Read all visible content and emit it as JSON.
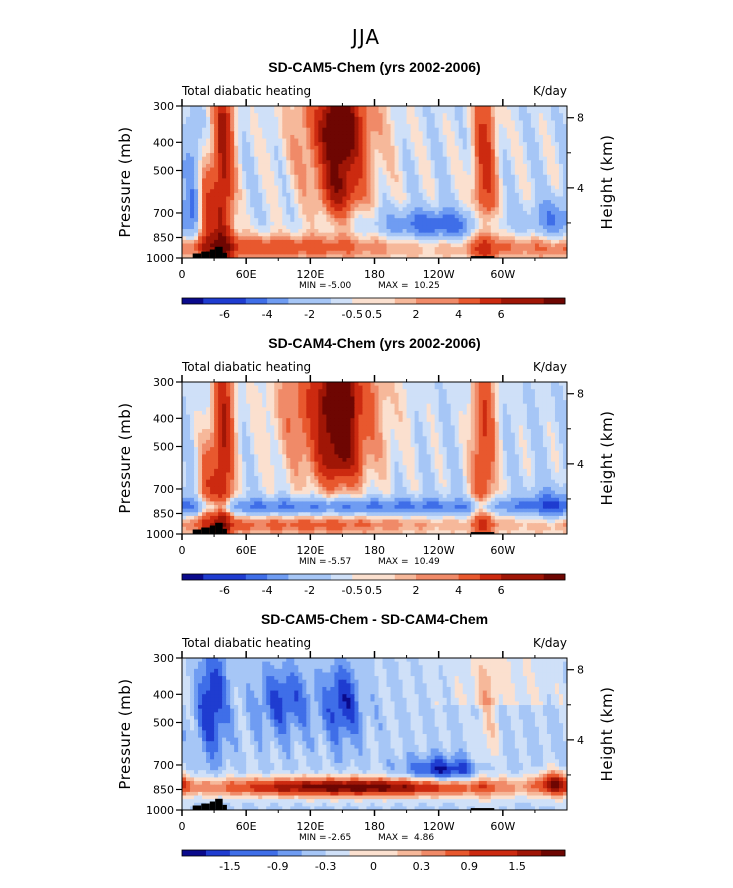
{
  "season": "JJA",
  "colors": {
    "scale": [
      "#0a0a8c",
      "#1f3cd0",
      "#3f6ee8",
      "#6f9cf2",
      "#a6c6f6",
      "#cfe0f8",
      "#fbe0cf",
      "#f6b89a",
      "#f08a68",
      "#e8582e",
      "#cc2a10",
      "#a01606",
      "#6e0602"
    ],
    "terrain": "#000000"
  },
  "common": {
    "quantity_label": "Total diabatic heating",
    "units": "K/day",
    "left_axis_label": "Pressure (mb)",
    "right_axis_label": "Height (km)"
  },
  "chart_data": [
    {
      "type": "heatmap",
      "title": "SD-CAM5-Chem (yrs 2002-2006)",
      "x_ticks": [
        "0",
        "60E",
        "120E",
        "180",
        "120W",
        "60W"
      ],
      "x_tick_values": [
        0,
        60,
        120,
        180,
        240,
        300
      ],
      "xlim": [
        0,
        360
      ],
      "y_ticks": [
        "300",
        "400",
        "500",
        "700",
        "850",
        "1000"
      ],
      "y_tick_values": [
        300,
        400,
        500,
        700,
        850,
        1000
      ],
      "ylim": [
        1000,
        300
      ],
      "y2_ticks": [
        "8",
        "4"
      ],
      "y2_tick_values": [
        8,
        4
      ],
      "min_label": "MIN =",
      "min_value": "-5.00",
      "max_label": "MAX =",
      "max_value": "10.25",
      "colorbar_labels": [
        "-6",
        "-4",
        "-2",
        "-0.5",
        "0.5",
        "2",
        "4",
        "6"
      ],
      "colorbar_levels": [
        -7,
        -6,
        -5,
        -4,
        -3,
        -2,
        -1,
        -0.5,
        0,
        0.5,
        1,
        2,
        3,
        4,
        5,
        6,
        7
      ],
      "field": "a"
    },
    {
      "type": "heatmap",
      "title": "SD-CAM4-Chem (yrs 2002-2006)",
      "x_ticks": [
        "0",
        "60E",
        "120E",
        "180",
        "120W",
        "60W"
      ],
      "x_tick_values": [
        0,
        60,
        120,
        180,
        240,
        300
      ],
      "xlim": [
        0,
        360
      ],
      "y_ticks": [
        "300",
        "400",
        "500",
        "700",
        "850",
        "1000"
      ],
      "y_tick_values": [
        300,
        400,
        500,
        700,
        850,
        1000
      ],
      "ylim": [
        1000,
        300
      ],
      "y2_ticks": [
        "8",
        "4"
      ],
      "y2_tick_values": [
        8,
        4
      ],
      "min_label": "MIN =",
      "min_value": "-5.57",
      "max_label": "MAX =",
      "max_value": "10.49",
      "colorbar_labels": [
        "-6",
        "-4",
        "-2",
        "-0.5",
        "0.5",
        "2",
        "4",
        "6"
      ],
      "colorbar_levels": [
        -7,
        -6,
        -5,
        -4,
        -3,
        -2,
        -1,
        -0.5,
        0,
        0.5,
        1,
        2,
        3,
        4,
        5,
        6,
        7
      ],
      "field": "b"
    },
    {
      "type": "heatmap",
      "title": "SD-CAM5-Chem - SD-CAM4-Chem",
      "x_ticks": [
        "0",
        "60E",
        "120E",
        "180",
        "120W",
        "60W"
      ],
      "x_tick_values": [
        0,
        60,
        120,
        180,
        240,
        300
      ],
      "xlim": [
        0,
        360
      ],
      "y_ticks": [
        "300",
        "400",
        "500",
        "700",
        "850",
        "1000"
      ],
      "y_tick_values": [
        300,
        400,
        500,
        700,
        850,
        1000
      ],
      "ylim": [
        1000,
        300
      ],
      "y2_ticks": [
        "8",
        "4"
      ],
      "y2_tick_values": [
        8,
        4
      ],
      "min_label": "MIN =",
      "min_value": "-2.65",
      "max_label": "MAX =",
      "max_value": "4.86",
      "colorbar_labels": [
        "-1.5",
        "-0.9",
        "-0.3",
        "0",
        "0.3",
        "0.9",
        "1.5"
      ],
      "colorbar_levels": [
        -2.1,
        -1.8,
        -1.5,
        -1.2,
        -0.9,
        -0.6,
        -0.3,
        0,
        0.3,
        0.6,
        0.9,
        1.2,
        1.5,
        1.8,
        2.1
      ],
      "field": "diff"
    }
  ]
}
